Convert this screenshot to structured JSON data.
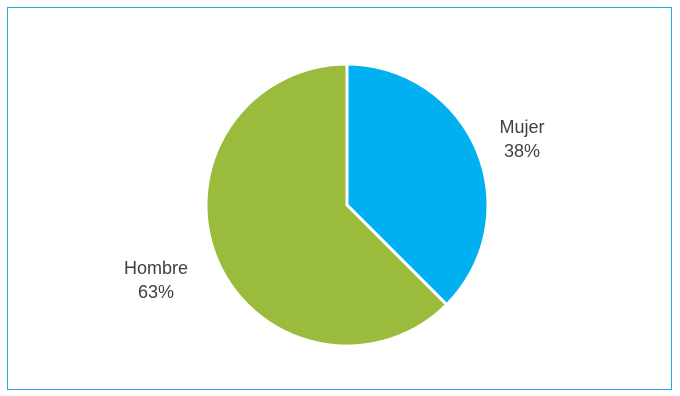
{
  "chart_data": {
    "type": "pie",
    "slices": [
      {
        "label": "Mujer",
        "value": 37.5,
        "display": "38%",
        "color": "#00b0f0"
      },
      {
        "label": "Hombre",
        "value": 62.5,
        "display": "63%",
        "color": "#9bbb3d"
      }
    ],
    "start_angle": "12 o'clock",
    "direction": "clockwise",
    "legend": "none",
    "slice_border_color": "#ffffff"
  }
}
